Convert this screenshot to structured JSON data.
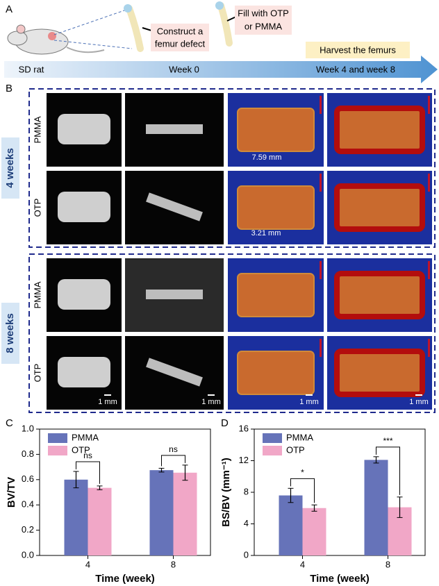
{
  "panel_a": {
    "label": "A",
    "construct": [
      "Construct a",
      "femur defect"
    ],
    "fill": [
      "Fill with OTP",
      "or PMMA"
    ],
    "harvest": "Harvest the femurs",
    "timeline": [
      "SD rat",
      "Week 0",
      "Week 4 and week 8"
    ]
  },
  "panel_b": {
    "label": "B",
    "groups": [
      {
        "label": "4 weeks",
        "rows": [
          "PMMA",
          "OTP"
        ]
      },
      {
        "label": "8 weeks",
        "rows": [
          "PMMA",
          "OTP"
        ]
      }
    ],
    "measurements": [
      "7.59 mm",
      "3.21 mm"
    ],
    "scale_bars": [
      "1 mm",
      "1 mm",
      "1 mm",
      "1 mm"
    ]
  },
  "chart_data": [
    {
      "type": "bar",
      "panel_label": "C",
      "xlabel": "Time (week)",
      "ylabel": "BV/TV",
      "categories": [
        "4",
        "8"
      ],
      "series": [
        {
          "name": "PMMA",
          "color": "#6673b9",
          "values": [
            0.6,
            0.675
          ],
          "errors": [
            0.065,
            0.015
          ]
        },
        {
          "name": "OTP",
          "color": "#f1a7c7",
          "values": [
            0.535,
            0.655
          ],
          "errors": [
            0.015,
            0.06
          ]
        }
      ],
      "ylim": [
        0,
        1
      ],
      "yticks": [
        {
          "value": 0,
          "label": "0.0"
        },
        0.2,
        0.4,
        0.6,
        0.8,
        {
          "value": 1,
          "label": "1.0"
        }
      ],
      "annotations": [
        "ns",
        "ns"
      ],
      "legend": "upper left"
    },
    {
      "type": "bar",
      "panel_label": "D",
      "xlabel": "Time (week)",
      "ylabel": "BS/BV (mm⁻¹)",
      "categories": [
        "4",
        "8"
      ],
      "series": [
        {
          "name": "PMMA",
          "color": "#6673b9",
          "values": [
            7.6,
            12.1
          ],
          "errors": [
            0.9,
            0.4
          ]
        },
        {
          "name": "OTP",
          "color": "#f1a7c7",
          "values": [
            6.0,
            6.1
          ],
          "errors": [
            0.4,
            1.3
          ]
        }
      ],
      "ylim": [
        0,
        16
      ],
      "yticks": [
        0,
        4,
        8,
        12,
        16
      ],
      "annotations": [
        "*",
        "***"
      ],
      "legend": "upper left"
    }
  ]
}
